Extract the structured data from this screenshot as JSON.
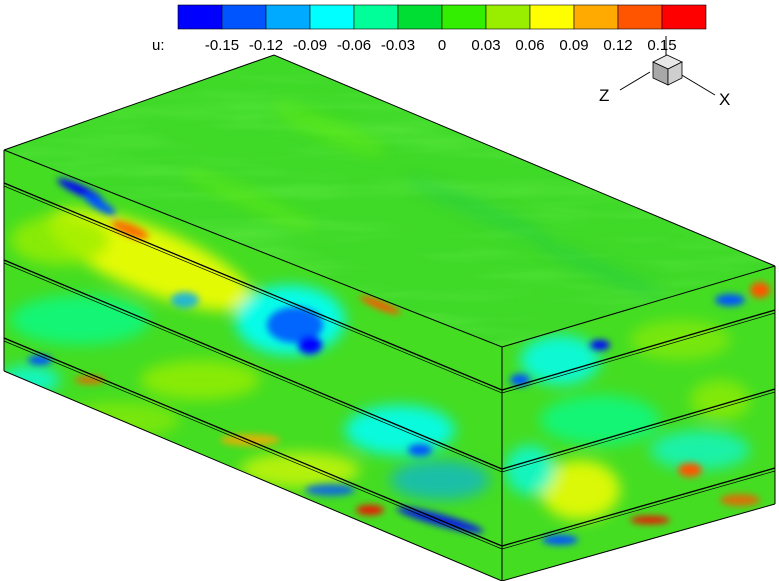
{
  "colorbar": {
    "variable_label": "u:",
    "tick_labels": [
      "-0.15",
      "-0.12",
      "-0.09",
      "-0.06",
      "-0.03",
      "0",
      "0.03",
      "0.06",
      "0.09",
      "0.12",
      "0.15"
    ],
    "colors": [
      "#0000ff",
      "#0055ff",
      "#00aaff",
      "#00ffff",
      "#00ff99",
      "#00dd33",
      "#33ee00",
      "#99ee00",
      "#ffff00",
      "#ffaa00",
      "#ff5500",
      "#ff0000"
    ]
  },
  "axis_triad": {
    "x_label": "X",
    "z_label": "Z"
  },
  "field": {
    "base_color": "#44dd22",
    "top_face_color": "#3fd928"
  }
}
